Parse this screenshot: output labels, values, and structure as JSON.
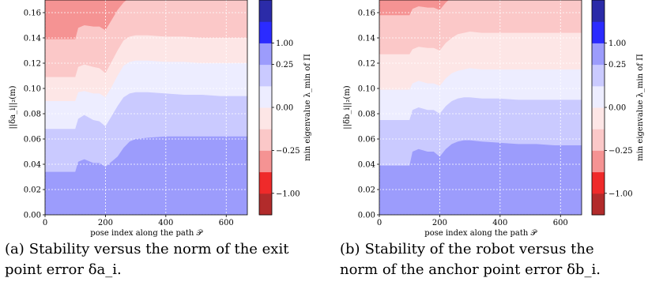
{
  "chart_data": [
    {
      "type": "area",
      "xlabel": "pose index along the path 𝒫",
      "ylabel": "||δa_i||₂(m)",
      "ylim": [
        0.0,
        0.17
      ],
      "xlim": [
        0,
        670
      ],
      "xticks": [
        "0",
        "200",
        "400",
        "600"
      ],
      "yticks": [
        "0.00",
        "0.02",
        "0.04",
        "0.06",
        "0.08",
        "0.10",
        "0.12",
        "0.14",
        "0.16"
      ],
      "grid": true,
      "colorbar": {
        "label": "min eigenvalue λ_min of Π",
        "tick_labels": [
          "1.00",
          "0.25",
          "0.00",
          "−0.25",
          "−1.00"
        ],
        "levels": [
          "#b22b2b",
          "#ef2a2a",
          "#f59393",
          "#fbc8c8",
          "#fde6e6",
          "#ededff",
          "#cacaff",
          "#9c9cfc",
          "#2b2bff",
          "#2b2ba8"
        ],
        "level_ticks": [
          -1.0,
          -0.25,
          0.0,
          0.25,
          1.0
        ]
      },
      "contours": {
        "x": [
          0,
          80,
          100,
          110,
          130,
          160,
          180,
          200,
          220,
          240,
          260,
          280,
          300,
          340,
          400,
          460,
          520,
          580,
          640,
          670
        ],
        "boundaries": [
          [
            0.034,
            0.034,
            0.034,
            0.042,
            0.044,
            0.041,
            0.041,
            0.038,
            0.042,
            0.046,
            0.053,
            0.058,
            0.06,
            0.061,
            0.062,
            0.062,
            0.062,
            0.062,
            0.062,
            0.062
          ],
          [
            0.068,
            0.068,
            0.068,
            0.076,
            0.079,
            0.075,
            0.074,
            0.07,
            0.078,
            0.086,
            0.093,
            0.096,
            0.097,
            0.097,
            0.096,
            0.095,
            0.095,
            0.094,
            0.094,
            0.094
          ],
          [
            0.09,
            0.09,
            0.09,
            0.097,
            0.098,
            0.096,
            0.096,
            0.093,
            0.101,
            0.11,
            0.118,
            0.121,
            0.122,
            0.122,
            0.121,
            0.121,
            0.12,
            0.12,
            0.12,
            0.12
          ],
          [
            0.109,
            0.109,
            0.109,
            0.117,
            0.119,
            0.117,
            0.116,
            0.112,
            0.121,
            0.13,
            0.138,
            0.141,
            0.142,
            0.142,
            0.141,
            0.141,
            0.14,
            0.14,
            0.14,
            0.14
          ],
          [
            0.139,
            0.139,
            0.139,
            0.148,
            0.15,
            0.149,
            0.149,
            0.146,
            0.154,
            0.162,
            0.168,
            0.172,
            0.175,
            0.175,
            0.175,
            0.175,
            0.175,
            0.175,
            0.175,
            0.175
          ]
        ],
        "band_colors": [
          "#9c9cfc",
          "#cacaff",
          "#ededff",
          "#fde6e6",
          "#fbc8c8",
          "#f59393"
        ]
      }
    },
    {
      "type": "area",
      "xlabel": "pose index along the path 𝒫",
      "ylabel": "||δb_i||₂(m)",
      "ylim": [
        0.0,
        0.17
      ],
      "xlim": [
        0,
        670
      ],
      "xticks": [
        "0",
        "200",
        "400",
        "600"
      ],
      "yticks": [
        "0.00",
        "0.02",
        "0.04",
        "0.06",
        "0.08",
        "0.10",
        "0.12",
        "0.14",
        "0.16"
      ],
      "grid": true,
      "colorbar": {
        "label": "min eigenvalue λ_min of Π",
        "tick_labels": [
          "1.00",
          "0.25",
          "0.00",
          "−0.25",
          "−1.00"
        ],
        "levels": [
          "#b22b2b",
          "#ef2a2a",
          "#f59393",
          "#fbc8c8",
          "#fde6e6",
          "#ededff",
          "#cacaff",
          "#9c9cfc",
          "#2b2bff",
          "#2b2ba8"
        ],
        "level_ticks": [
          -1.0,
          -0.25,
          0.0,
          0.25,
          1.0
        ]
      },
      "contours": {
        "x": [
          0,
          80,
          100,
          110,
          130,
          160,
          180,
          200,
          220,
          240,
          260,
          280,
          300,
          340,
          400,
          460,
          520,
          580,
          640,
          670
        ],
        "boundaries": [
          [
            0.039,
            0.039,
            0.039,
            0.05,
            0.052,
            0.05,
            0.05,
            0.046,
            0.052,
            0.056,
            0.058,
            0.059,
            0.059,
            0.058,
            0.057,
            0.056,
            0.056,
            0.055,
            0.055,
            0.055
          ],
          [
            0.075,
            0.075,
            0.075,
            0.083,
            0.085,
            0.083,
            0.083,
            0.08,
            0.086,
            0.09,
            0.092,
            0.093,
            0.093,
            0.092,
            0.092,
            0.091,
            0.091,
            0.091,
            0.091,
            0.091
          ],
          [
            0.099,
            0.099,
            0.099,
            0.104,
            0.106,
            0.104,
            0.104,
            0.102,
            0.108,
            0.112,
            0.114,
            0.115,
            0.116,
            0.115,
            0.115,
            0.115,
            0.115,
            0.115,
            0.115,
            0.115
          ],
          [
            0.127,
            0.127,
            0.127,
            0.131,
            0.133,
            0.132,
            0.132,
            0.13,
            0.136,
            0.14,
            0.143,
            0.144,
            0.145,
            0.144,
            0.144,
            0.144,
            0.144,
            0.144,
            0.144,
            0.144
          ],
          [
            0.158,
            0.158,
            0.158,
            0.163,
            0.165,
            0.164,
            0.164,
            0.162,
            0.168,
            0.172,
            0.175,
            0.175,
            0.175,
            0.175,
            0.175,
            0.175,
            0.175,
            0.175,
            0.175,
            0.175
          ]
        ],
        "band_colors": [
          "#9c9cfc",
          "#cacaff",
          "#ededff",
          "#fde6e6",
          "#fbc8c8",
          "#f59393"
        ]
      }
    }
  ],
  "captions": [
    {
      "letter": "(a)",
      "lines": [
        "Stability versus the norm of the exit",
        "point error δa_i."
      ]
    },
    {
      "letter": "(b)",
      "lines": [
        "Stability of the robot versus the",
        "norm of the anchor point error δb_i."
      ]
    }
  ]
}
